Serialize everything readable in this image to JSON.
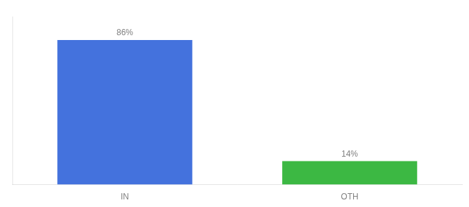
{
  "chart_data": {
    "type": "bar",
    "categories": [
      "IN",
      "OTH"
    ],
    "values": [
      86,
      14
    ],
    "colors": [
      "#4472DD",
      "#3CB843"
    ],
    "value_labels": [
      "86%",
      "14%"
    ],
    "data_labels": true,
    "ylim": [
      0,
      100
    ],
    "grid": false,
    "tick_labels": "x"
  }
}
